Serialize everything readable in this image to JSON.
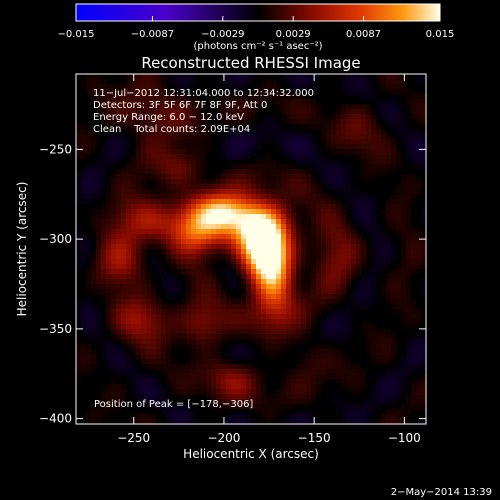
{
  "chart_data": {
    "type": "heatmap",
    "title": "Reconstructed RHESSI Image",
    "xlabel": "Heliocentric X (arcsec)",
    "ylabel": "Heliocentric Y (arcsec)",
    "xlim": [
      -282,
      -88
    ],
    "ylim": [
      -403,
      -208
    ],
    "x_ticks": [
      -250,
      -200,
      -150,
      -100
    ],
    "x_tick_labels": [
      "−250",
      "−200",
      "−150",
      "−100"
    ],
    "y_ticks": [
      -250,
      -300,
      -350,
      -400
    ],
    "y_tick_labels": [
      "−250",
      "−300",
      "−350",
      "−400"
    ],
    "colorbar": {
      "range": [
        -0.015,
        0.015
      ],
      "ticks": [
        -0.015,
        -0.0087,
        -0.0029,
        0.0029,
        0.0087,
        0.015
      ],
      "tick_labels": [
        "−0.015",
        "−0.0087",
        "−0.0029",
        "0.0029",
        "0.0087",
        "0.015"
      ],
      "unit_label": "(photons cm⁻² s⁻¹ asec⁻²)"
    },
    "annotations": [
      "11−Jul−2012 12:31:04.000 to 12:34:32.000",
      "Detectors: 3F 5F 6F 7F 8F 9F, Att 0",
      "Energy Range: 6.0 − 12.0 keV",
      "Clean    Total counts: 2.09E+04"
    ],
    "peak_label": "Position of Peak = [−178,−306]",
    "peak": [
      -178,
      -306
    ],
    "blobs": [
      {
        "x": -178,
        "y": -305,
        "sx": 9,
        "sy": 13,
        "v": 0.0135
      },
      {
        "x": -188,
        "y": -292,
        "sx": 16,
        "sy": 9,
        "v": 0.0105
      },
      {
        "x": -172,
        "y": -322,
        "sx": 8,
        "sy": 16,
        "v": 0.0105
      },
      {
        "x": -200,
        "y": -284,
        "sx": 12,
        "sy": 7,
        "v": 0.0085
      },
      {
        "x": -215,
        "y": -296,
        "sx": 10,
        "sy": 9,
        "v": 0.0065
      },
      {
        "x": -240,
        "y": -290,
        "sx": 13,
        "sy": 9,
        "v": 0.0058
      },
      {
        "x": -258,
        "y": -312,
        "sx": 10,
        "sy": 10,
        "v": 0.0042
      },
      {
        "x": -245,
        "y": -345,
        "sx": 11,
        "sy": 9,
        "v": 0.0045
      },
      {
        "x": -212,
        "y": -348,
        "sx": 9,
        "sy": 9,
        "v": 0.0043
      },
      {
        "x": -135,
        "y": -310,
        "sx": 10,
        "sy": 13,
        "v": 0.0028
      },
      {
        "x": -225,
        "y": -260,
        "sx": 10,
        "sy": 8,
        "v": 0.0038
      },
      {
        "x": -240,
        "y": -228,
        "sx": 14,
        "sy": 10,
        "v": 0.0034
      },
      {
        "x": -125,
        "y": -240,
        "sx": 10,
        "sy": 10,
        "v": 0.0022
      },
      {
        "x": -195,
        "y": -378,
        "sx": 10,
        "sy": 8,
        "v": 0.0038
      },
      {
        "x": -155,
        "y": -365,
        "sx": 9,
        "sy": 8,
        "v": 0.0022
      }
    ]
  },
  "footer": {
    "date": "2−May−2014 13:39"
  }
}
